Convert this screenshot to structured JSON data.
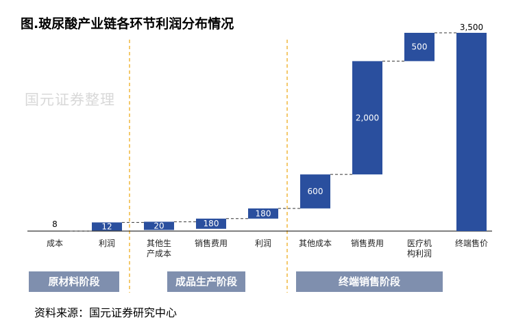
{
  "title": "图.玻尿酸产业链各环节利润分布情况",
  "watermark": "国元证券整理",
  "source": "资料来源：国元证券研究中心",
  "colors": {
    "bar": "#2a4f9e",
    "stage_box": "#7f8fae",
    "divider": "#f0b73c",
    "connector": "#333333"
  },
  "chart_data": {
    "type": "waterfall",
    "title": "图.玻尿酸产业链各环节利润分布情况",
    "categories": [
      "成本",
      "利润",
      "其他生产成本",
      "销售费用",
      "利润",
      "其他成本",
      "销售费用",
      "医疗机构利润",
      "终端售价"
    ],
    "category_display": [
      "成本",
      "利润",
      "其他生\n产成本",
      "销售费用",
      "利润",
      "其他成本",
      "销售费用",
      "医疗机\n构利润",
      "终端售价"
    ],
    "values": [
      8,
      12,
      20,
      180,
      180,
      600,
      2000,
      500,
      3500
    ],
    "value_labels": [
      "8",
      "12",
      "20",
      "180",
      "180",
      "600",
      "2,000",
      "500",
      "3,500"
    ],
    "kind": [
      "increment",
      "increment",
      "increment",
      "increment",
      "increment",
      "increment",
      "increment",
      "increment",
      "total"
    ],
    "ylim": [
      0,
      3500
    ],
    "stages": [
      {
        "label": "原材料阶段",
        "categories": [
          0,
          1
        ]
      },
      {
        "label": "成品生产阶段",
        "categories": [
          2,
          3,
          4
        ]
      },
      {
        "label": "终端销售阶段",
        "categories": [
          5,
          6,
          7,
          8
        ]
      }
    ]
  }
}
